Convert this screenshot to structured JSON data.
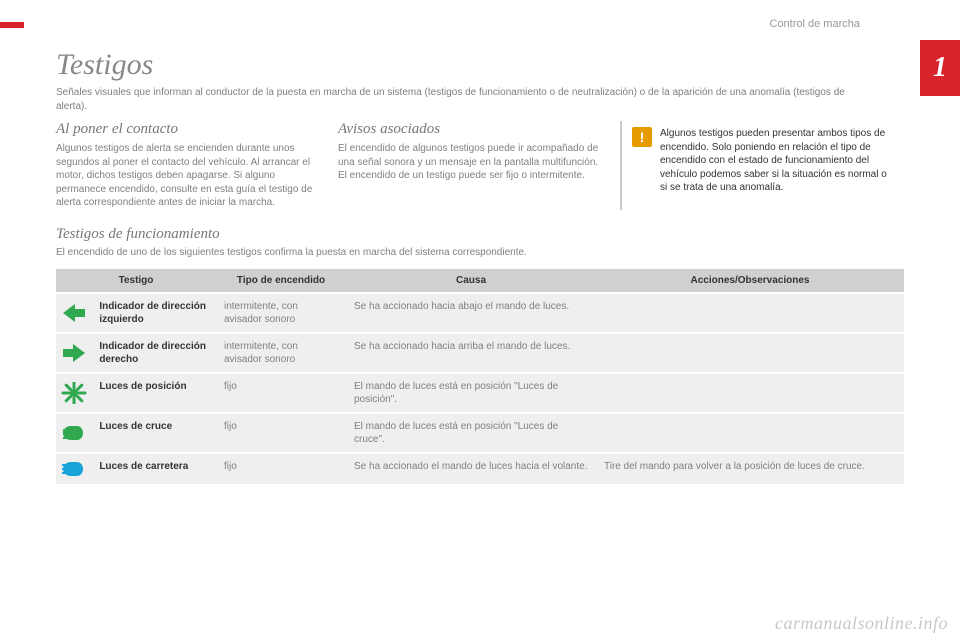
{
  "breadcrumb": "Control de marcha",
  "chapter_number": "1",
  "title": "Testigos",
  "intro": "Señales visuales que informan al conductor de la puesta en marcha de un sistema (testigos de funcionamiento o de neutralización) o de la aparición de una anomalía (testigos de alerta).",
  "col1": {
    "heading": "Al poner el contacto",
    "body": "Algunos testigos de alerta se encienden durante unos segundos al poner el contacto del vehículo. Al arrancar el motor, dichos testigos deben apagarse. Si alguno permanece encendido, consulte en esta guía el testigo de alerta correspondiente antes de iniciar la marcha."
  },
  "col2": {
    "heading": "Avisos asociados",
    "body": "El encendido de algunos testigos puede ir acompañado de una señal sonora y un mensaje en la pantalla multifunción. El encendido de un testigo puede ser fijo o intermitente."
  },
  "alert": "Algunos testigos pueden presentar ambos tipos de encendido. Solo poniendo en relación el tipo de encendido con el estado de funcionamiento del vehículo podemos saber si la situación es normal o si se trata de una anomalía.",
  "section": {
    "heading": "Testigos de funcionamiento",
    "sub": "El encendido de uno de los siguientes testigos confirma la puesta en marcha del sistema correspondiente."
  },
  "table": {
    "headers": [
      "Testigo",
      "Tipo de encendido",
      "Causa",
      "Acciones/Observaciones"
    ],
    "rows": [
      {
        "icon": "arrow-left",
        "icon_color": "#2fa84f",
        "label": "Indicador de dirección izquierdo",
        "type": "intermitente, con avisador sonoro",
        "cause": "Se ha accionado hacia abajo el mando de luces.",
        "action": ""
      },
      {
        "icon": "arrow-right",
        "icon_color": "#2fa84f",
        "label": "Indicador de dirección derecho",
        "type": "intermitente, con avisador sonoro",
        "cause": "Se ha accionado hacia arriba el mando de luces.",
        "action": ""
      },
      {
        "icon": "position-light",
        "icon_color": "#2fa84f",
        "label": "Luces de posición",
        "type": "fijo",
        "cause": "El mando de luces está en posición \"Luces de posición\".",
        "action": ""
      },
      {
        "icon": "low-beam",
        "icon_color": "#2fa84f",
        "label": "Luces de cruce",
        "type": "fijo",
        "cause": "El mando de luces está en posición \"Luces de cruce\".",
        "action": ""
      },
      {
        "icon": "high-beam",
        "icon_color": "#1aa3d8",
        "label": "Luces de carretera",
        "type": "fijo",
        "cause": "Se ha accionado el mando de luces hacia el volante.",
        "action": "Tire del mando para volver a la posición de luces de cruce."
      }
    ]
  },
  "watermark": "carmanualsonline.info",
  "colors": {
    "accent_red": "#d8232a",
    "alert_orange": "#e69b00",
    "header_gray": "#d0d0d0",
    "row_gray": "#efefef"
  }
}
